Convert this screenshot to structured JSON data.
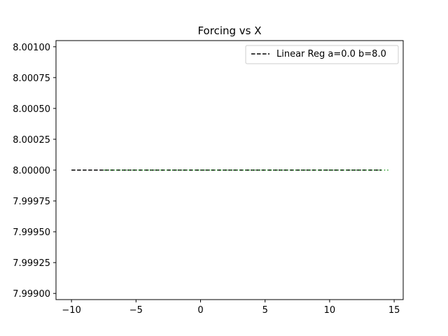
{
  "chart_data": {
    "type": "line",
    "title": "Forcing vs X",
    "xlabel": "",
    "ylabel": "",
    "xlim": [
      -11.2,
      15.7
    ],
    "ylim": [
      7.99895,
      8.00105
    ],
    "xticks": [
      -10,
      -5,
      0,
      5,
      10,
      15
    ],
    "xtick_labels": [
      "−10",
      "−5",
      "0",
      "5",
      "10",
      "15"
    ],
    "yticks": [
      7.999,
      7.99925,
      7.9995,
      7.99975,
      8.0,
      8.00025,
      8.0005,
      8.00075,
      8.001
    ],
    "ytick_labels": [
      "7.99900",
      "7.99925",
      "7.99950",
      "7.99975",
      "8.00000",
      "8.00025",
      "8.00050",
      "8.00075",
      "8.00100"
    ],
    "grid": false,
    "legend_position": "upper-right",
    "series": [
      {
        "name": "Linear Reg a=0.0 b=8.0",
        "style": "dashed",
        "color": "#000000",
        "x": [
          -10,
          14
        ],
        "y": [
          8.0,
          8.0
        ]
      },
      {
        "style": "dotted",
        "color": "#2ca02c",
        "x": [
          -7.5,
          14.6
        ],
        "y": [
          8.0,
          8.0
        ]
      }
    ]
  }
}
